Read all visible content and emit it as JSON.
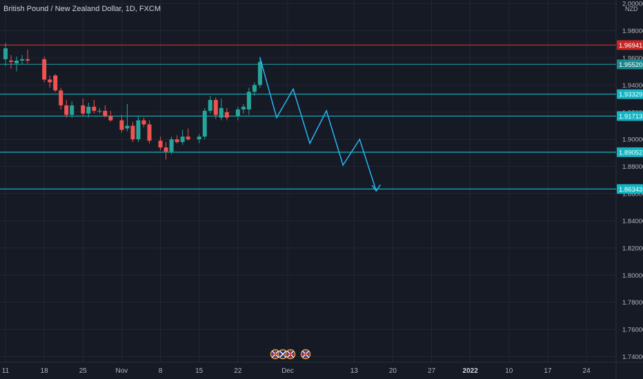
{
  "chart_data": {
    "type": "candlestick",
    "title": "British Pound / New Zealand Dollar, 1D, FXCM",
    "currency": "NZD",
    "ylim": [
      1.73,
      2.0
    ],
    "y_ticks": [
      2.0,
      1.98,
      1.96,
      1.94,
      1.92,
      1.9,
      1.88,
      1.86,
      1.84,
      1.82,
      1.8,
      1.78,
      1.76,
      1.74
    ],
    "y_tick_labels": [
      "2.00000",
      "1.98000",
      "1.96000",
      "1.94000",
      "1.92000",
      "1.90000",
      "1.88000",
      "1.86000",
      "1.84000",
      "1.82000",
      "1.80000",
      "1.78000",
      "1.76000",
      "1.74000"
    ],
    "x_tick_labels": [
      {
        "label": "11",
        "day": 0
      },
      {
        "label": "18",
        "day": 7
      },
      {
        "label": "25",
        "day": 14
      },
      {
        "label": "Nov",
        "day": 21
      },
      {
        "label": "8",
        "day": 28
      },
      {
        "label": "15",
        "day": 35
      },
      {
        "label": "22",
        "day": 42
      },
      {
        "label": "Dec",
        "day": 51
      },
      {
        "label": "13",
        "day": 63
      },
      {
        "label": "20",
        "day": 70
      },
      {
        "label": "27",
        "day": 77
      },
      {
        "label": "2022",
        "day": 84,
        "bold": true
      },
      {
        "label": "10",
        "day": 91
      },
      {
        "label": "17",
        "day": 98
      },
      {
        "label": "24",
        "day": 105
      }
    ],
    "candles": [
      {
        "day": 0,
        "o": 1.959,
        "h": 1.971,
        "l": 1.954,
        "c": 1.967
      },
      {
        "day": 1,
        "o": 1.958,
        "h": 1.962,
        "l": 1.952,
        "c": 1.957
      },
      {
        "day": 2,
        "o": 1.956,
        "h": 1.961,
        "l": 1.95,
        "c": 1.958
      },
      {
        "day": 3,
        "o": 1.958,
        "h": 1.962,
        "l": 1.955,
        "c": 1.959
      },
      {
        "day": 4,
        "o": 1.959,
        "h": 1.966,
        "l": 1.956,
        "c": 1.958
      },
      {
        "day": 7,
        "o": 1.959,
        "h": 1.961,
        "l": 1.942,
        "c": 1.944
      },
      {
        "day": 8,
        "o": 1.944,
        "h": 1.947,
        "l": 1.938,
        "c": 1.942
      },
      {
        "day": 9,
        "o": 1.947,
        "h": 1.948,
        "l": 1.935,
        "c": 1.936
      },
      {
        "day": 10,
        "o": 1.936,
        "h": 1.938,
        "l": 1.922,
        "c": 1.925
      },
      {
        "day": 11,
        "o": 1.925,
        "h": 1.929,
        "l": 1.916,
        "c": 1.918
      },
      {
        "day": 12,
        "o": 1.918,
        "h": 1.928,
        "l": 1.916,
        "c": 1.925
      },
      {
        "day": 14,
        "o": 1.925,
        "h": 1.93,
        "l": 1.917,
        "c": 1.919
      },
      {
        "day": 15,
        "o": 1.919,
        "h": 1.927,
        "l": 1.916,
        "c": 1.924
      },
      {
        "day": 16,
        "o": 1.924,
        "h": 1.929,
        "l": 1.919,
        "c": 1.921
      },
      {
        "day": 17,
        "o": 1.921,
        "h": 1.923,
        "l": 1.919,
        "c": 1.921
      },
      {
        "day": 18,
        "o": 1.921,
        "h": 1.925,
        "l": 1.916,
        "c": 1.917
      },
      {
        "day": 19,
        "o": 1.917,
        "h": 1.921,
        "l": 1.913,
        "c": 1.914
      },
      {
        "day": 21,
        "o": 1.914,
        "h": 1.918,
        "l": 1.905,
        "c": 1.907
      },
      {
        "day": 22,
        "o": 1.908,
        "h": 1.926,
        "l": 1.906,
        "c": 1.91
      },
      {
        "day": 23,
        "o": 1.91,
        "h": 1.913,
        "l": 1.898,
        "c": 1.9
      },
      {
        "day": 24,
        "o": 1.9,
        "h": 1.917,
        "l": 1.898,
        "c": 1.914
      },
      {
        "day": 25,
        "o": 1.914,
        "h": 1.916,
        "l": 1.909,
        "c": 1.911
      },
      {
        "day": 26,
        "o": 1.911,
        "h": 1.914,
        "l": 1.897,
        "c": 1.899
      },
      {
        "day": 28,
        "o": 1.899,
        "h": 1.902,
        "l": 1.892,
        "c": 1.894
      },
      {
        "day": 29,
        "o": 1.894,
        "h": 1.898,
        "l": 1.885,
        "c": 1.891
      },
      {
        "day": 30,
        "o": 1.891,
        "h": 1.902,
        "l": 1.889,
        "c": 1.9
      },
      {
        "day": 31,
        "o": 1.9,
        "h": 1.903,
        "l": 1.897,
        "c": 1.898
      },
      {
        "day": 32,
        "o": 1.898,
        "h": 1.907,
        "l": 1.896,
        "c": 1.902
      },
      {
        "day": 33,
        "o": 1.902,
        "h": 1.908,
        "l": 1.899,
        "c": 1.9
      },
      {
        "day": 35,
        "o": 1.9,
        "h": 1.904,
        "l": 1.897,
        "c": 1.902
      },
      {
        "day": 36,
        "o": 1.902,
        "h": 1.923,
        "l": 1.9,
        "c": 1.921
      },
      {
        "day": 37,
        "o": 1.921,
        "h": 1.932,
        "l": 1.919,
        "c": 1.929
      },
      {
        "day": 38,
        "o": 1.929,
        "h": 1.931,
        "l": 1.915,
        "c": 1.918
      },
      {
        "day": 39,
        "o": 1.916,
        "h": 1.93,
        "l": 1.914,
        "c": 1.923
      },
      {
        "day": 40,
        "o": 1.92,
        "h": 1.923,
        "l": 1.914,
        "c": 1.916
      },
      {
        "day": 42,
        "o": 1.917,
        "h": 1.924,
        "l": 1.914,
        "c": 1.922
      },
      {
        "day": 43,
        "o": 1.922,
        "h": 1.926,
        "l": 1.919,
        "c": 1.924
      },
      {
        "day": 44,
        "o": 1.922,
        "h": 1.938,
        "l": 1.918,
        "c": 1.935
      },
      {
        "day": 45,
        "o": 1.935,
        "h": 1.942,
        "l": 1.932,
        "c": 1.94
      },
      {
        "day": 46,
        "o": 1.94,
        "h": 1.961,
        "l": 1.938,
        "c": 1.957
      }
    ],
    "horizontal_lines": [
      {
        "value": 1.96941,
        "label": "1.96941",
        "color": "#c62828"
      },
      {
        "value": 1.9552,
        "label": "1.95520",
        "color": "#1a8a8f"
      },
      {
        "value": 1.93329,
        "label": "1.93329",
        "color": "#13b5c2"
      },
      {
        "value": 1.91713,
        "label": "1.91713",
        "color": "#13b5c2"
      },
      {
        "value": 1.89052,
        "label": "1.89052",
        "color": "#13b5c2"
      },
      {
        "value": 1.86343,
        "label": "1.86343",
        "color": "#13b5c2"
      }
    ],
    "projection_path": [
      {
        "day": 46,
        "value": 1.96
      },
      {
        "day": 49,
        "value": 1.916
      },
      {
        "day": 52,
        "value": 1.937
      },
      {
        "day": 55,
        "value": 1.897
      },
      {
        "day": 58,
        "value": 1.921
      },
      {
        "day": 61,
        "value": 1.881
      },
      {
        "day": 64,
        "value": 1.9
      },
      {
        "day": 67,
        "value": 1.862
      }
    ],
    "grid": true
  },
  "colors": {
    "background": "#161a25",
    "grid": "#232734",
    "up": "#26a69a",
    "down": "#ef5350",
    "projection": "#29b6f6"
  },
  "event_icons": [
    "uk-flag-icon",
    "nz-flag-icon",
    "uk-flag-icon",
    "uk-flag-icon"
  ]
}
